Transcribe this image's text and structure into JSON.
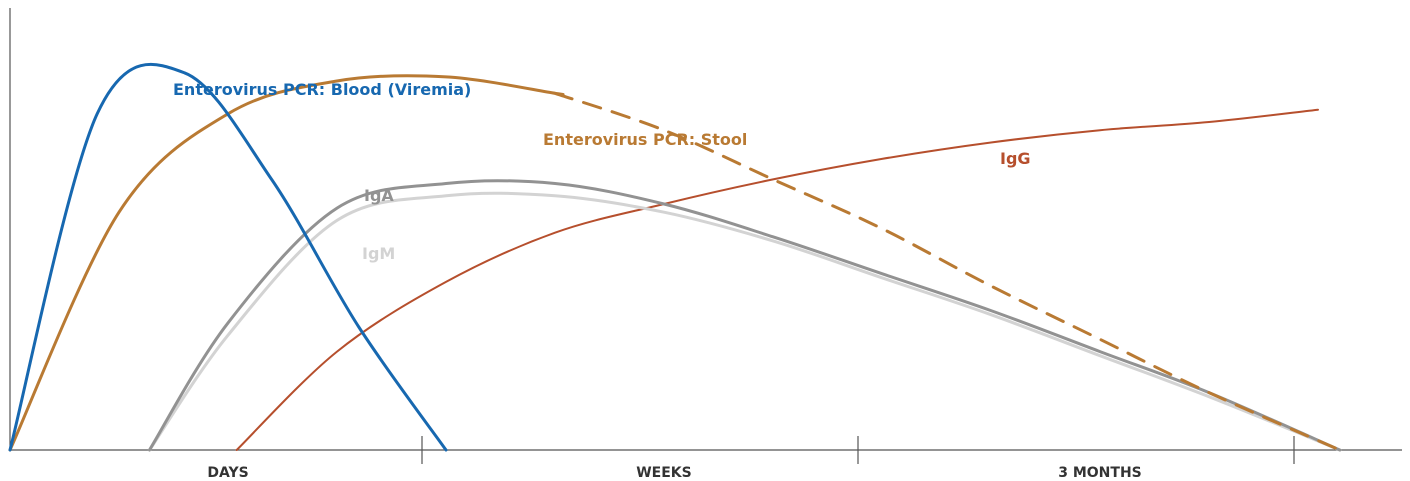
{
  "chart_data": {
    "type": "line",
    "title": "",
    "xlabel": "",
    "ylabel": "",
    "grid": false,
    "legend": "none",
    "x_categories": [
      "DAYS",
      "WEEKS",
      "3 MONTHS"
    ],
    "series": [
      {
        "name": "Enterovirus PCR: Blood (Viremia)",
        "color": "#1768b0",
        "width": 3,
        "x": [
          0,
          0.2,
          0.4,
          0.6,
          0.8,
          1.0
        ],
        "y": [
          0,
          0.82,
          0.92,
          0.66,
          0.3,
          0
        ]
      },
      {
        "name": "Enterovirus PCR: Stool",
        "color": "#b97a33",
        "width": 3,
        "x": [
          0,
          0.25,
          0.5,
          0.75,
          1.0,
          1.25,
          1.5,
          1.75,
          2.0,
          2.25,
          2.5,
          2.75,
          3.05
        ],
        "y": [
          0,
          0.58,
          0.82,
          0.9,
          0.91,
          0.87,
          0.78,
          0.66,
          0.54,
          0.4,
          0.27,
          0.14,
          0
        ],
        "dashed_from_x": 1.35
      },
      {
        "name": "IgA",
        "color": "#929292",
        "width": 3,
        "x": [
          0.32,
          0.5,
          0.75,
          1.0,
          1.25,
          1.5,
          1.75,
          2.0,
          2.25,
          2.5,
          2.75,
          3.05
        ],
        "y": [
          0,
          0.31,
          0.59,
          0.65,
          0.65,
          0.6,
          0.52,
          0.43,
          0.34,
          0.24,
          0.14,
          0
        ]
      },
      {
        "name": "IgM",
        "color": "#d3d3d3",
        "width": 3,
        "x": [
          0.32,
          0.5,
          0.75,
          1.0,
          1.25,
          1.5,
          1.75,
          2.0,
          2.25,
          2.5,
          2.75,
          3.05
        ],
        "y": [
          0,
          0.28,
          0.56,
          0.62,
          0.62,
          0.58,
          0.51,
          0.42,
          0.33,
          0.23,
          0.13,
          0
        ]
      },
      {
        "name": "IgG",
        "color": "#b64f2d",
        "width": 2,
        "x": [
          0.52,
          0.75,
          1.0,
          1.25,
          1.5,
          1.75,
          2.0,
          2.25,
          2.5,
          2.75,
          3.0
        ],
        "y": [
          0,
          0.24,
          0.41,
          0.53,
          0.6,
          0.66,
          0.71,
          0.75,
          0.78,
          0.8,
          0.83
        ]
      }
    ]
  },
  "labels": {
    "viremia": "Enterovirus PCR: Blood (Viremia)",
    "stool": "Enterovirus PCR: Stool",
    "iga": "IgA",
    "igm": "IgM",
    "igg": "IgG"
  }
}
